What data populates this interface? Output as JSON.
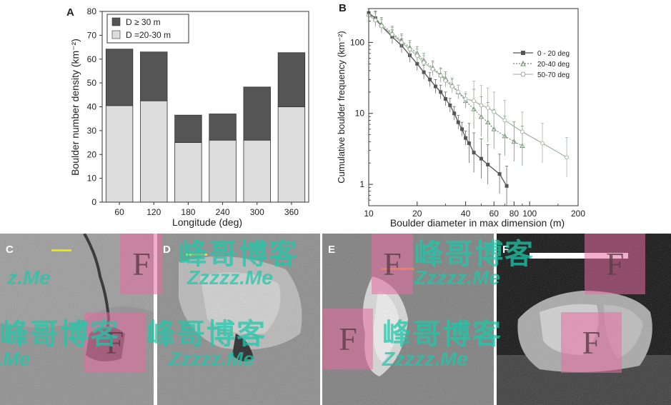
{
  "chart_data": [
    {
      "panel": "A",
      "type": "bar",
      "stacked": true,
      "categories": [
        "60",
        "120",
        "180",
        "240",
        "300",
        "360"
      ],
      "series": [
        {
          "name": "D =20-30 m",
          "values": [
            40.5,
            42.5,
            25.0,
            26.0,
            26.0,
            40.0
          ],
          "color": "#dcdcdc"
        },
        {
          "name": "D ≥ 30 m",
          "values": [
            23.7,
            20.5,
            11.5,
            11.0,
            22.3,
            22.7
          ],
          "color": "#555555"
        }
      ],
      "legend": [
        "D ≥ 30 m",
        "D =20-30 m"
      ],
      "xlabel": "Longitude (deg)",
      "ylabel": "Boulder number density (km⁻²)",
      "ylim": [
        0,
        80
      ],
      "yticks": [
        "0",
        "10",
        "20",
        "30",
        "40",
        "50",
        "60",
        "70",
        "80"
      ]
    },
    {
      "panel": "B",
      "type": "line",
      "log_x": true,
      "log_y": true,
      "xlabel": "Boulder diameter in max dimension (m)",
      "ylabel": "Cumulative boulder frequency (km⁻²)",
      "xlim": [
        10,
        200
      ],
      "ylim": [
        0.5,
        300
      ],
      "xticks": [
        "10",
        "20",
        "40",
        "60",
        "80",
        "100",
        "200"
      ],
      "yticks": [
        "1",
        "10",
        "100"
      ],
      "series": [
        {
          "name": "0 - 20 deg",
          "style": "solid-square",
          "color": "#555555",
          "x": [
            10,
            11,
            12,
            14,
            16,
            18,
            20,
            22,
            24,
            26,
            28,
            30,
            32,
            34,
            36,
            38,
            40,
            42,
            45,
            50,
            55,
            65,
            72
          ],
          "y": [
            260,
            220,
            170,
            120,
            90,
            66,
            50,
            38,
            30,
            24,
            20,
            16,
            13,
            10,
            7.5,
            6,
            4.5,
            3.8,
            2.8,
            2.3,
            1.9,
            1.4,
            0.95
          ]
        },
        {
          "name": "20-40 deg",
          "style": "dotted-triangle",
          "color": "#6a8a6a",
          "x": [
            10,
            11,
            12,
            14,
            16,
            18,
            20,
            22,
            25,
            28,
            30,
            33,
            36,
            40,
            45,
            50,
            55,
            60,
            70,
            80,
            90
          ],
          "y": [
            250,
            215,
            180,
            135,
            105,
            85,
            70,
            56,
            44,
            35,
            31,
            25,
            20,
            15,
            11.5,
            9,
            7.5,
            6,
            4.8,
            4.0,
            3.5
          ]
        },
        {
          "name": "50-70 deg",
          "style": "thin-circle",
          "color": "#9aaa9a",
          "x": [
            10,
            11,
            12,
            14,
            16,
            18,
            20,
            22,
            25,
            28,
            30,
            33,
            36,
            40,
            45,
            50,
            55,
            60,
            70,
            90,
            120,
            170
          ],
          "y": [
            240,
            205,
            170,
            130,
            100,
            80,
            65,
            52,
            42,
            34,
            29,
            24,
            20,
            16,
            15,
            13,
            12,
            10.5,
            8,
            5.5,
            3.8,
            2.4
          ]
        }
      ]
    }
  ],
  "panels": {
    "A": "A",
    "B": "B",
    "C": "C",
    "D": "D",
    "E": "E",
    "F": "F"
  },
  "watermark": {
    "cn": "峰哥博客",
    "en": "Zzzzz.Me",
    "en_short": "z.Me",
    "letter": "F"
  }
}
